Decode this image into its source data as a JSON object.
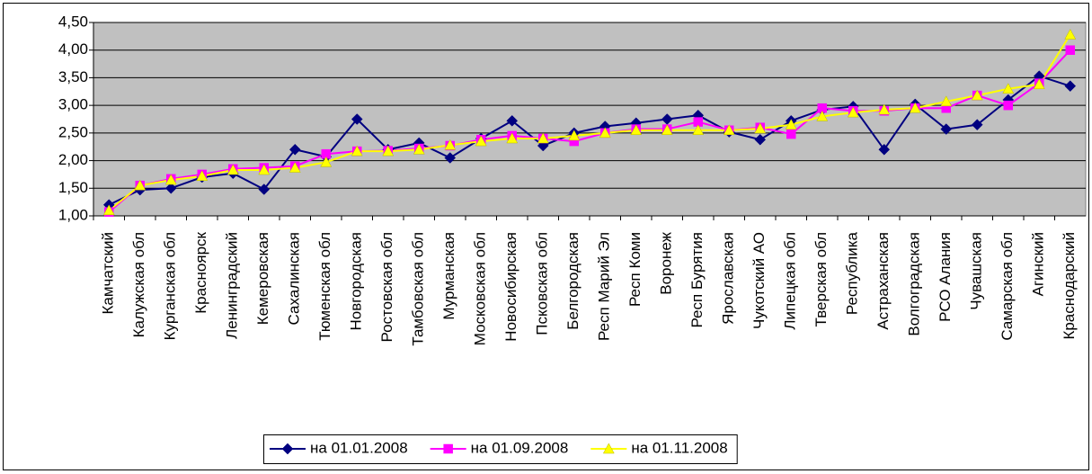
{
  "chart_data": {
    "type": "line",
    "categories": [
      "Камчатский",
      "Калужская обл",
      "Курганская обл",
      "Красноярск",
      "Ленинградский",
      "Кемеровская",
      "Сахалинская",
      "Тюменская обл",
      "Новгородская",
      "Ростовская обл",
      "Тамбовская обл",
      "Мурманская",
      "Московская обл",
      "Новосибирская",
      "Псковская обл",
      "Белгородская",
      "Респ Марий Эл",
      "Респ Коми",
      "Воронеж",
      "Респ Бурятия",
      "Ярославская",
      "Чукотский АО",
      "Липецкая обл",
      "Тверская обл",
      "Республика",
      "Астраханская",
      "Волгоградская",
      "РСО Алания",
      "Чувашская",
      "Самарская обл",
      "Агинский",
      "Краснодарский"
    ],
    "series": [
      {
        "name": "на 01.01.2008",
        "color": "#000080",
        "marker": "diamond",
        "values": [
          1.2,
          1.47,
          1.5,
          1.7,
          1.77,
          1.48,
          2.2,
          2.07,
          2.75,
          2.2,
          2.32,
          2.05,
          2.4,
          2.72,
          2.27,
          2.5,
          2.62,
          2.68,
          2.75,
          2.82,
          2.52,
          2.38,
          2.72,
          2.92,
          2.98,
          2.2,
          3.02,
          2.57,
          2.65,
          3.1,
          3.53,
          3.35
        ]
      },
      {
        "name": "на 01.09.2008",
        "color": "#ff00ff",
        "marker": "square",
        "values": [
          1.07,
          1.55,
          1.67,
          1.75,
          1.85,
          1.87,
          1.9,
          2.12,
          2.17,
          2.18,
          2.22,
          2.27,
          2.38,
          2.45,
          2.4,
          2.35,
          2.5,
          2.57,
          2.57,
          2.7,
          2.55,
          2.6,
          2.48,
          2.95,
          2.9,
          2.9,
          2.95,
          2.95,
          3.18,
          3.0,
          3.4,
          4.0
        ]
      },
      {
        "name": "на 01.11.2008",
        "color": "#ffff00",
        "marker": "triangle",
        "values": [
          1.1,
          1.55,
          1.65,
          1.72,
          1.83,
          1.83,
          1.87,
          1.97,
          2.17,
          2.17,
          2.2,
          2.28,
          2.35,
          2.4,
          2.4,
          2.45,
          2.5,
          2.55,
          2.55,
          2.55,
          2.55,
          2.58,
          2.65,
          2.8,
          2.87,
          2.92,
          2.95,
          3.07,
          3.18,
          3.3,
          3.38,
          4.28
        ]
      }
    ],
    "ylim": [
      1.0,
      4.5
    ],
    "yticks": [
      {
        "value": 1.0,
        "label": "1,00"
      },
      {
        "value": 1.5,
        "label": "1,50"
      },
      {
        "value": 2.0,
        "label": "2,00"
      },
      {
        "value": 2.5,
        "label": "2,50"
      },
      {
        "value": 3.0,
        "label": "3,00"
      },
      {
        "value": 3.5,
        "label": "3,50"
      },
      {
        "value": 4.0,
        "label": "4,00"
      },
      {
        "value": 4.5,
        "label": "4,50"
      }
    ],
    "grid": true,
    "legend": "bottom"
  }
}
